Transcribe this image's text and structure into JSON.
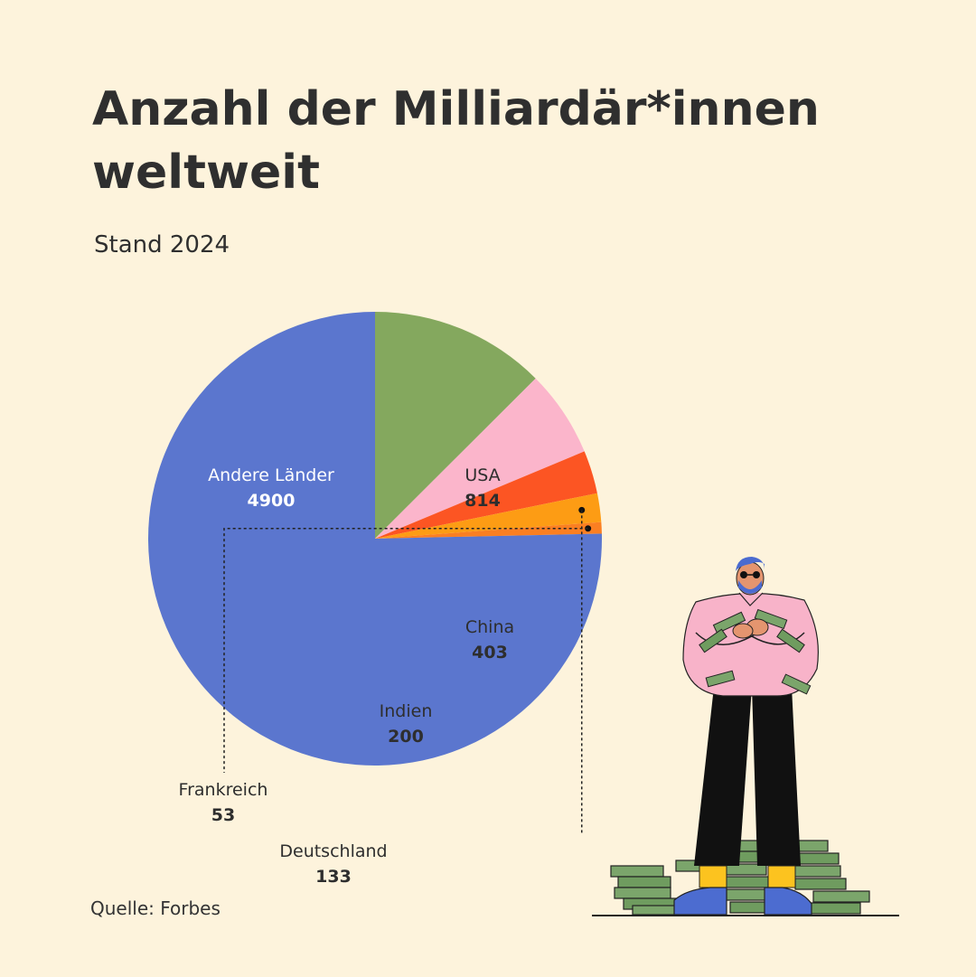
{
  "header": {
    "title_line1": "Anzahl der Milliardär*innen",
    "title_line2": "weltweit",
    "subtitle": "Stand 2024"
  },
  "footer": {
    "source": "Quelle: Forbes"
  },
  "chart_data": {
    "type": "pie",
    "title": "Anzahl der Milliardär*innen weltweit",
    "subtitle": "Stand 2024",
    "categories": [
      "USA",
      "China",
      "Indien",
      "Deutschland",
      "Frankreich",
      "Andere Länder"
    ],
    "values": [
      814,
      403,
      200,
      133,
      53,
      4900
    ],
    "value_labels": [
      "814",
      "403",
      "200",
      "133",
      "53",
      "4900"
    ],
    "colors": [
      "#84a85e",
      "#fbb5cb",
      "#fc5523",
      "#fd9c14",
      "#fb7f22",
      "#5b76ce"
    ],
    "label_colors": [
      "#2e2e2e",
      "#2e2e2e",
      "#2e2e2e",
      "#2e2e2e",
      "#2e2e2e",
      "#ffffff"
    ],
    "start": "12 o'clock, clockwise",
    "legend": "none"
  },
  "colors": {
    "background": "#fdf3dc",
    "text": "#2f2f2f"
  }
}
